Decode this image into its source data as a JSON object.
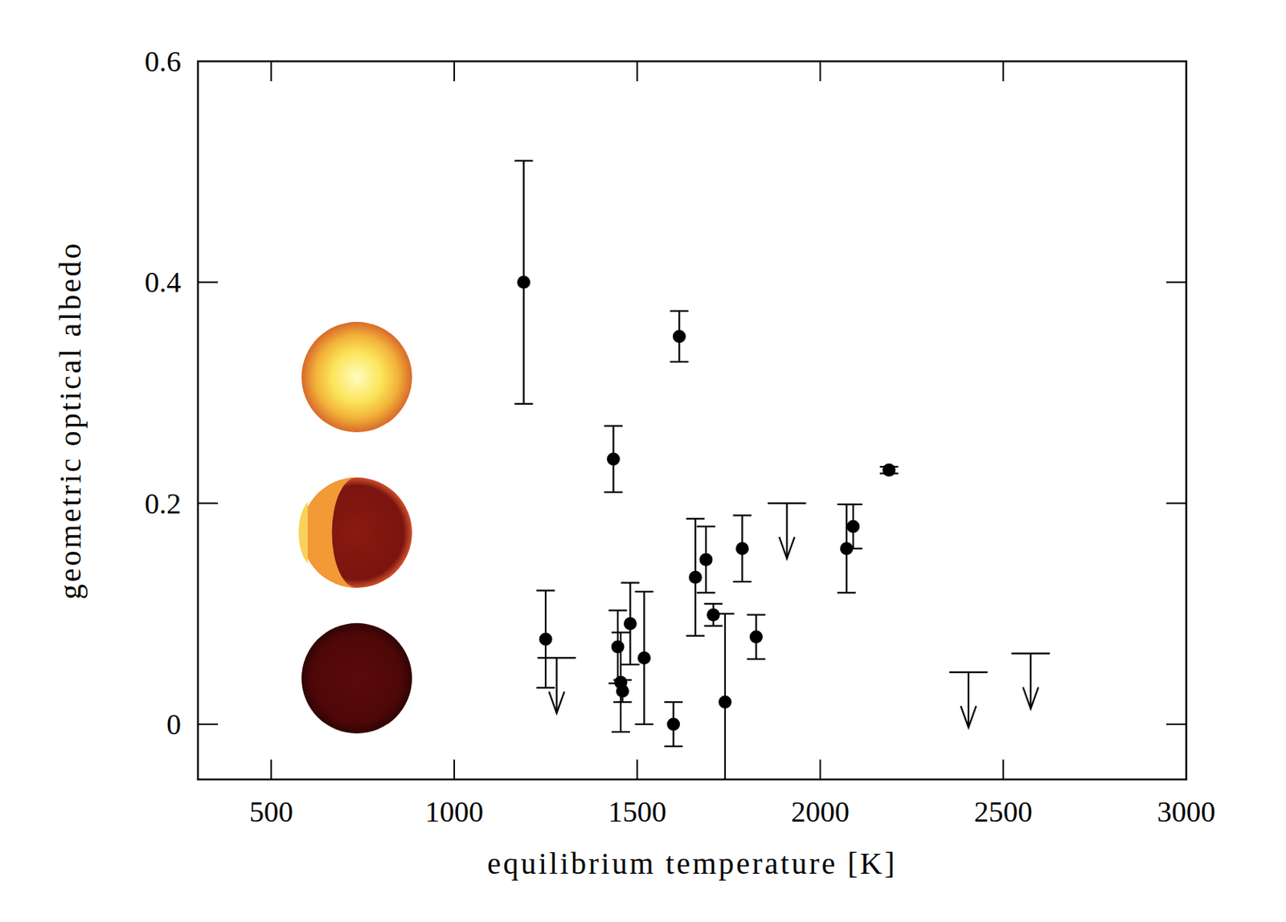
{
  "chart_data": {
    "type": "scatter",
    "xlabel": "equilibrium temperature [K]",
    "ylabel": "geometric optical albedo",
    "xlim": [
      300,
      3000
    ],
    "ylim": [
      -0.05,
      0.6
    ],
    "xticks": [
      500,
      1000,
      1500,
      2000,
      2500,
      3000
    ],
    "yticks": [
      0,
      0.2,
      0.4,
      0.6
    ],
    "grid": false,
    "series": [
      {
        "type": "errorbar",
        "color": "#000000",
        "marker": "circle",
        "x": [
          1190,
          1250,
          1435,
          1447,
          1455,
          1460,
          1481,
          1519,
          1599,
          1615,
          1659,
          1688,
          1708,
          1740,
          1787,
          1825,
          2072,
          2090,
          2188
        ],
        "values": [
          0.4,
          0.077,
          0.24,
          0.07,
          0.038,
          0.03,
          0.091,
          0.06,
          0.0,
          0.351,
          0.133,
          0.149,
          0.099,
          0.02,
          0.159,
          0.079,
          0.159,
          0.179,
          0.23
        ],
        "errors": [
          0.11,
          0.044,
          0.03,
          0.033,
          0.045,
          0.01,
          0.037,
          0.06,
          0.02,
          0.023,
          0.053,
          0.03,
          0.01,
          0.08,
          0.03,
          0.02,
          0.04,
          0.02,
          0.003
        ]
      },
      {
        "type": "upper_limit",
        "color": "#000000",
        "marker": "arrow",
        "x": [
          1280,
          1909,
          2405,
          2575
        ],
        "values": [
          0.06,
          0.2,
          0.047,
          0.064
        ]
      }
    ]
  }
}
